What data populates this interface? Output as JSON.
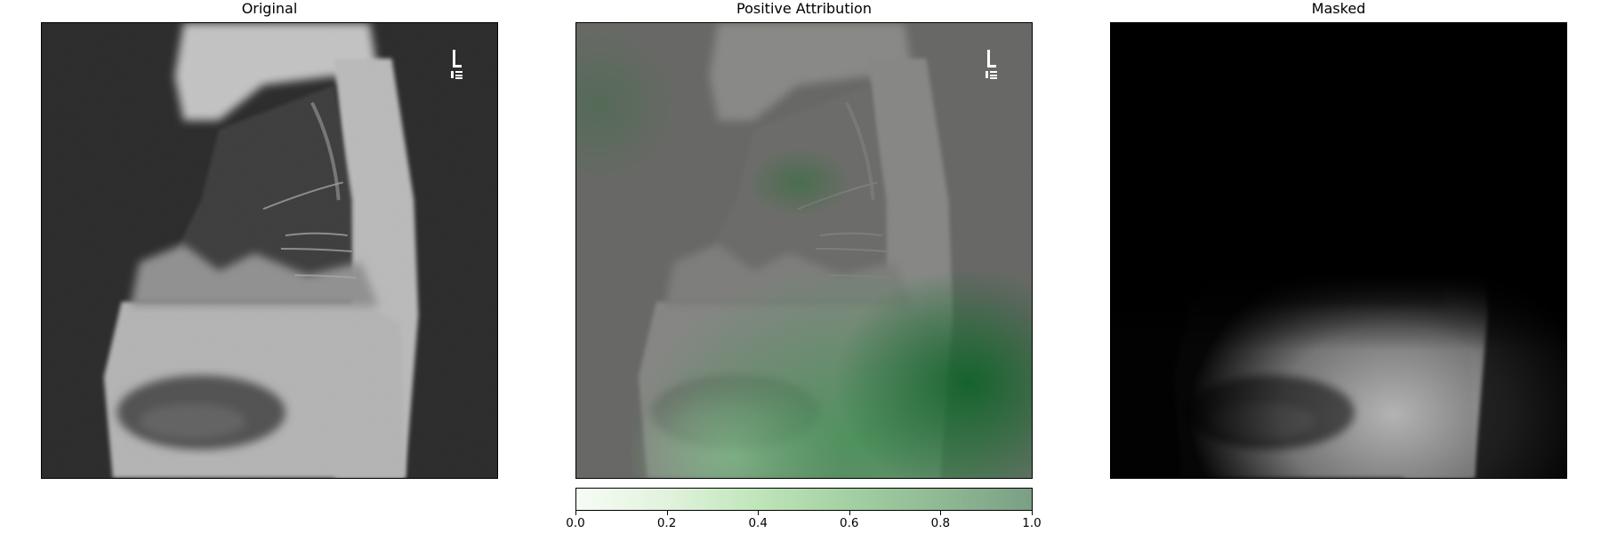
{
  "panels": {
    "original": {
      "title": "Original"
    },
    "attribution": {
      "title": "Positive Attribution"
    },
    "masked": {
      "title": "Masked"
    }
  },
  "colorbar": {
    "colormap": "Greens",
    "range": [
      0.0,
      1.0
    ],
    "ticks": [
      "0.0",
      "0.2",
      "0.4",
      "0.6",
      "0.8",
      "1.0"
    ],
    "colors": {
      "low": "#f7fcf5",
      "high": "#7b9f84"
    }
  },
  "image_content": {
    "subject": "lateral chest x-ray",
    "marker_icon": "l-laterality-marker-icon"
  }
}
